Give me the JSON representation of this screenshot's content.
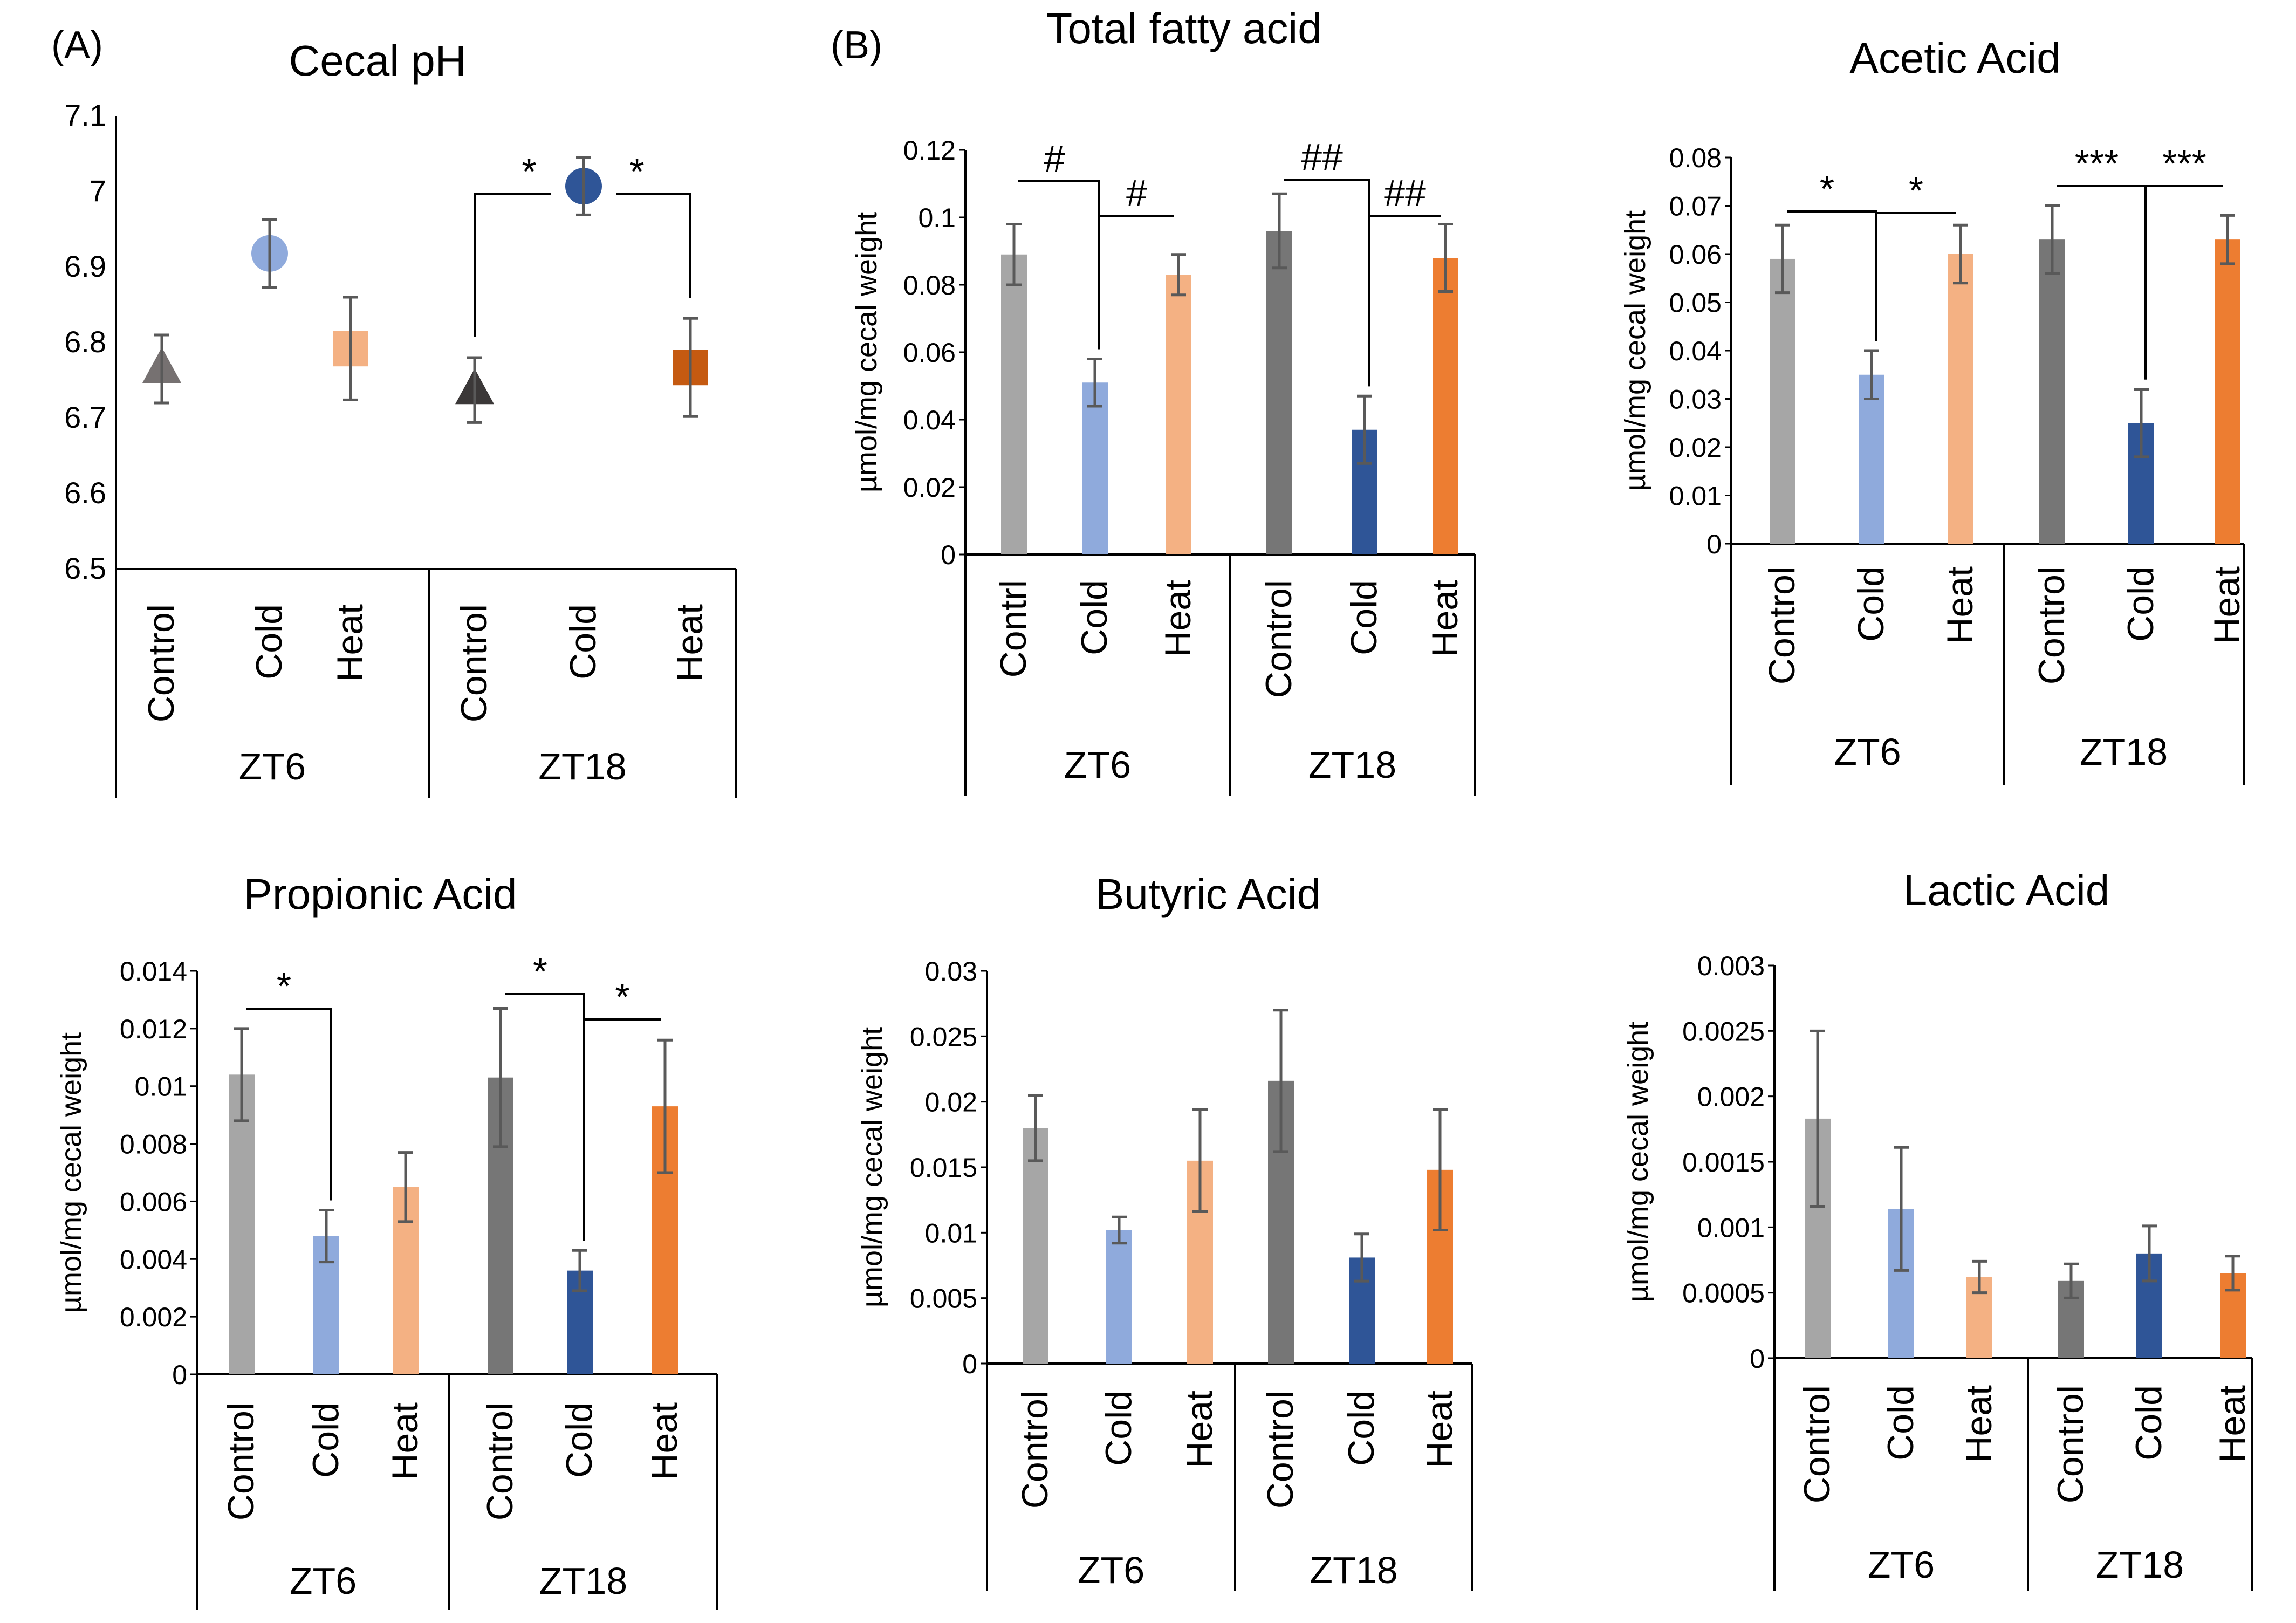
{
  "panel_labels": {
    "a": "(A)",
    "b": "(B)"
  },
  "sig": {
    "single_star": "*",
    "triple_star": "***",
    "hash": "#",
    "double_hash": "##"
  },
  "colors": {
    "ctrl6": "#a6a6a6",
    "cold6": "#8faadc",
    "heat6": "#f4b183",
    "ctrl18": "#767676",
    "cold18": "#2f5597",
    "heat18": "#ed7d31",
    "error": "#595959",
    "axis": "#000000",
    "ph_ctrl6": "#767171",
    "ph_ctrl18": "#3b3838",
    "ph_heat18": "#c55a11"
  },
  "chart_data": [
    {
      "type": "scatter",
      "id": "ph",
      "title": "Cecal pH",
      "ylabel": "",
      "ylim": [
        6.5,
        7.1
      ],
      "yticks": [
        "6.5",
        "6.6",
        "6.7",
        "6.8",
        "6.9",
        "7",
        "7.1"
      ],
      "groups": [
        "ZT6",
        "ZT18"
      ],
      "categories": [
        "Control",
        "Cold",
        "Heat",
        "Control",
        "Cold",
        "Heat"
      ],
      "values": [
        6.765,
        6.918,
        6.792,
        6.737,
        7.007,
        6.767
      ],
      "errors": [
        0.045,
        0.045,
        0.068,
        0.043,
        0.038,
        0.065
      ],
      "markers": [
        "triangle",
        "circle",
        "square",
        "triangle",
        "circle",
        "square"
      ],
      "brackets": [
        {
          "from": 3,
          "to": 4,
          "label": "*"
        },
        {
          "from": 4,
          "to": 5,
          "label": "*"
        }
      ]
    },
    {
      "type": "bar",
      "id": "total",
      "title": "Total fatty acid",
      "ylabel": "µmol/mg cecal weight",
      "ylim": [
        0,
        0.12
      ],
      "yticks": [
        "0",
        "0.02",
        "0.04",
        "0.06",
        "0.08",
        "0.1",
        "0.12"
      ],
      "groups": [
        "ZT6",
        "ZT18"
      ],
      "categories": [
        "Contrl",
        "Cold",
        "Heat",
        "Control",
        "Cold",
        "Heat"
      ],
      "values": [
        0.089,
        0.051,
        0.083,
        0.096,
        0.037,
        0.088
      ],
      "errors": [
        0.009,
        0.007,
        0.006,
        0.011,
        0.01,
        0.01
      ],
      "brackets": [
        {
          "from": 0,
          "to": 1,
          "label": "#"
        },
        {
          "from": 1,
          "to": 2,
          "label": "#"
        },
        {
          "from": 3,
          "to": 4,
          "label": "##"
        },
        {
          "from": 4,
          "to": 5,
          "label": "##"
        }
      ]
    },
    {
      "type": "bar",
      "id": "acetic",
      "title": "Acetic Acid",
      "ylabel": "µmol/mg cecal weight",
      "ylim": [
        0,
        0.08
      ],
      "yticks": [
        "0",
        "0.01",
        "0.02",
        "0.03",
        "0.04",
        "0.05",
        "0.06",
        "0.07",
        "0.08"
      ],
      "groups": [
        "ZT6",
        "ZT18"
      ],
      "categories": [
        "Control",
        "Cold",
        "Heat",
        "Control",
        "Cold",
        "Heat"
      ],
      "values": [
        0.059,
        0.035,
        0.06,
        0.063,
        0.025,
        0.063
      ],
      "errors": [
        0.007,
        0.005,
        0.006,
        0.007,
        0.007,
        0.005
      ],
      "brackets": [
        {
          "from": 0,
          "to": 1,
          "label": "*"
        },
        {
          "from": 1,
          "to": 2,
          "label": "*"
        },
        {
          "from": 3,
          "to": 4,
          "label": "***"
        },
        {
          "from": 4,
          "to": 5,
          "label": "***"
        }
      ]
    },
    {
      "type": "bar",
      "id": "propionic",
      "title": "Propionic Acid",
      "ylabel": "µmol/mg cecal weight",
      "ylim": [
        0,
        0.014
      ],
      "yticks": [
        "0",
        "0.002",
        "0.004",
        "0.006",
        "0.008",
        "0.01",
        "0.012",
        "0.014"
      ],
      "groups": [
        "ZT6",
        "ZT18"
      ],
      "categories": [
        "Control",
        "Cold",
        "Heat",
        "Control",
        "Cold",
        "Heat"
      ],
      "values": [
        0.0104,
        0.0048,
        0.0065,
        0.0103,
        0.0036,
        0.0093
      ],
      "errors": [
        0.0016,
        0.0009,
        0.0012,
        0.0024,
        0.0007,
        0.0023
      ],
      "brackets": [
        {
          "from": 0,
          "to": 1,
          "label": "*"
        },
        {
          "from": 3,
          "to": 4,
          "label": "*"
        },
        {
          "from": 4,
          "to": 5,
          "label": "*"
        }
      ]
    },
    {
      "type": "bar",
      "id": "butyric",
      "title": "Butyric Acid",
      "ylabel": "µmol/mg cecal weight",
      "ylim": [
        0,
        0.03
      ],
      "yticks": [
        "0",
        "0.005",
        "0.01",
        "0.015",
        "0.02",
        "0.025",
        "0.03"
      ],
      "groups": [
        "ZT6",
        "ZT18"
      ],
      "categories": [
        "Control",
        "Cold",
        "Heat",
        "Control",
        "Cold",
        "Heat"
      ],
      "values": [
        0.018,
        0.0102,
        0.0155,
        0.0216,
        0.0081,
        0.0148
      ],
      "errors": [
        0.0025,
        0.001,
        0.0039,
        0.0054,
        0.0018,
        0.0046
      ],
      "brackets": []
    },
    {
      "type": "bar",
      "id": "lactic",
      "title": "Lactic Acid",
      "ylabel": "µmol/mg cecal weight",
      "ylim": [
        0,
        0.003
      ],
      "yticks": [
        "0",
        "0.0005",
        "0.001",
        "0.0015",
        "0.002",
        "0.0025",
        "0.003"
      ],
      "groups": [
        "ZT6",
        "ZT18"
      ],
      "categories": [
        "Control",
        "Cold",
        "Heat",
        "Control",
        "Cold",
        "Heat"
      ],
      "values": [
        0.00183,
        0.00114,
        0.00062,
        0.00059,
        0.0008,
        0.00065
      ],
      "errors": [
        0.00067,
        0.00047,
        0.00012,
        0.00013,
        0.00021,
        0.00013
      ],
      "brackets": []
    }
  ]
}
